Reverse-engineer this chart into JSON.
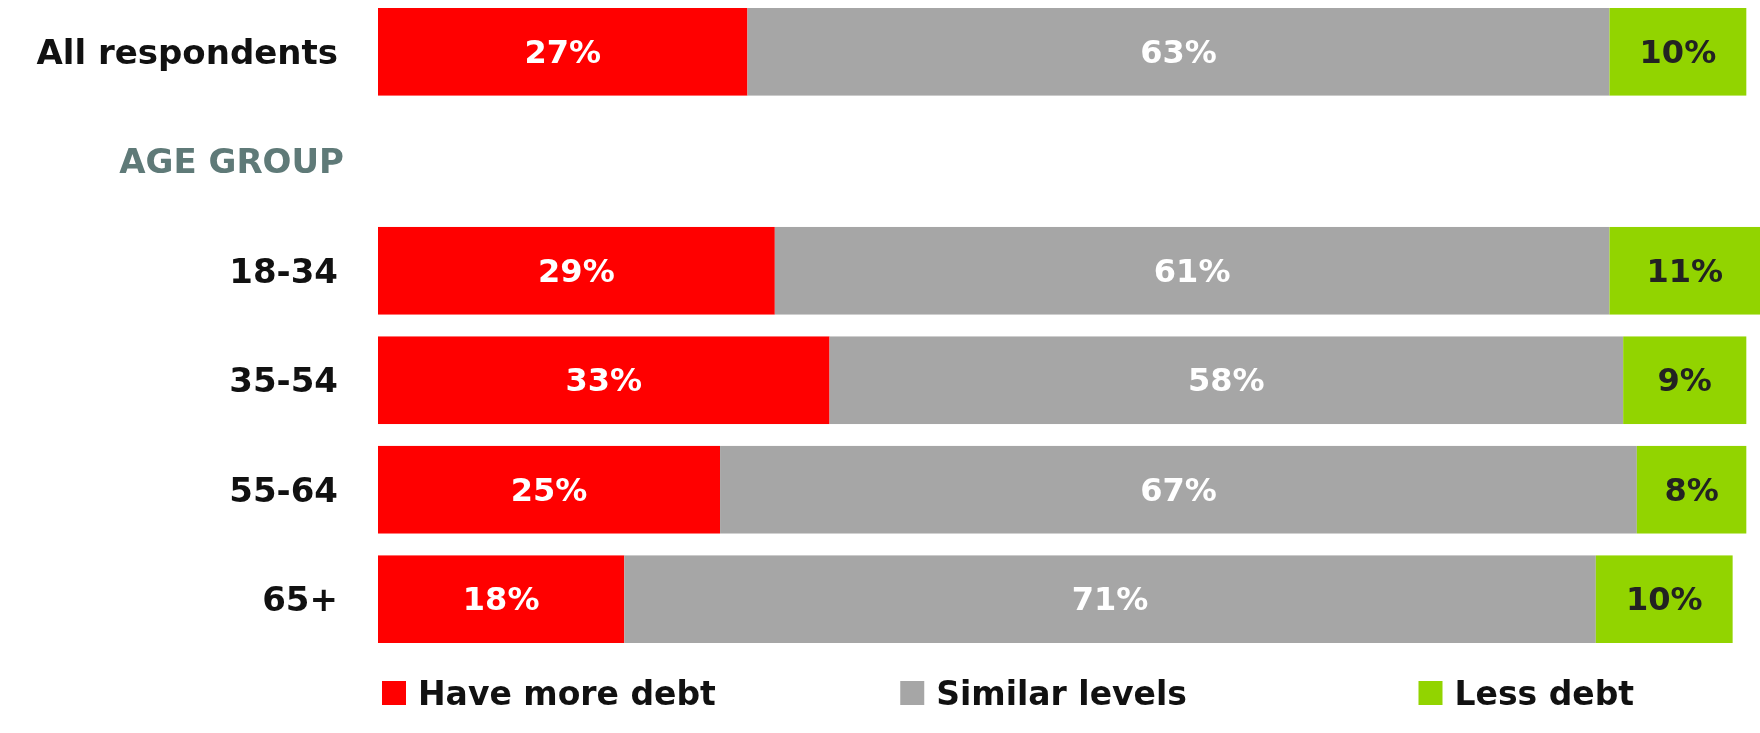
{
  "chart_data": {
    "type": "bar",
    "orientation": "horizontal",
    "stacked": true,
    "legend": "bottom",
    "tick_labels": "y",
    "categories": [
      "All respondents",
      "AGE GROUP",
      "18-34",
      "35-54",
      "55-64",
      "65+"
    ],
    "series": [
      {
        "name": "Have more debt",
        "color": "#ff0000",
        "values": [
          27,
          null,
          29,
          33,
          25,
          18
        ],
        "value_labels": [
          "27%",
          null,
          "29%",
          "33%",
          "25%",
          "18%"
        ]
      },
      {
        "name": "Similar levels",
        "color": "#a6a6a6",
        "values": [
          63,
          null,
          61,
          58,
          67,
          71
        ],
        "value_labels": [
          "63%",
          null,
          "61%",
          "58%",
          "67%",
          "71%"
        ]
      },
      {
        "name": "Less debt",
        "color": "#92d400",
        "values": [
          10,
          null,
          11,
          9,
          8,
          10
        ],
        "value_labels": [
          "10%",
          null,
          "11%",
          "9%",
          "8%",
          "10%"
        ]
      }
    ]
  }
}
